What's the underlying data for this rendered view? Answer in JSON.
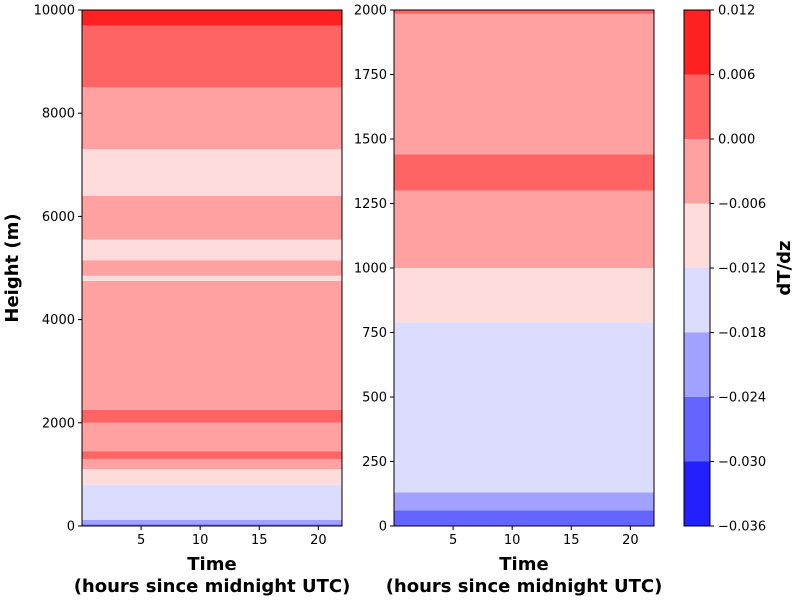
{
  "chart_data": [
    {
      "type": "heatmap",
      "panel": "left",
      "xlabel_line1": "Time",
      "xlabel_line2": "(hours since midnight UTC)",
      "ylabel": "Height (m)",
      "xlim": [
        0,
        22
      ],
      "ylim": [
        0,
        10000
      ],
      "x_ticks": [
        5,
        10,
        15,
        20
      ],
      "y_ticks": [
        0,
        2000,
        4000,
        6000,
        8000,
        10000
      ],
      "layers": [
        {
          "y0": 0,
          "y1": 30,
          "value": -0.03
        },
        {
          "y0": 30,
          "y1": 120,
          "value": -0.024
        },
        {
          "y0": 120,
          "y1": 800,
          "value": -0.018
        },
        {
          "y0": 800,
          "y1": 1100,
          "value": -0.012
        },
        {
          "y0": 1100,
          "y1": 1300,
          "value": -0.006
        },
        {
          "y0": 1300,
          "y1": 1450,
          "value": 0.0
        },
        {
          "y0": 1450,
          "y1": 2000,
          "value": -0.006
        },
        {
          "y0": 2000,
          "y1": 2250,
          "value": 0.0
        },
        {
          "y0": 2250,
          "y1": 4750,
          "value": -0.006
        },
        {
          "y0": 4750,
          "y1": 4850,
          "value": -0.012
        },
        {
          "y0": 4850,
          "y1": 5150,
          "value": -0.006
        },
        {
          "y0": 5150,
          "y1": 5550,
          "value": -0.012
        },
        {
          "y0": 5550,
          "y1": 6400,
          "value": -0.006
        },
        {
          "y0": 6400,
          "y1": 7300,
          "value": -0.012
        },
        {
          "y0": 7300,
          "y1": 8500,
          "value": -0.006
        },
        {
          "y0": 8500,
          "y1": 9700,
          "value": 0.0
        },
        {
          "y0": 9700,
          "y1": 10000,
          "value": 0.006
        }
      ]
    },
    {
      "type": "heatmap",
      "panel": "right",
      "xlabel_line1": "Time",
      "xlabel_line2": "(hours since midnight UTC)",
      "xlim": [
        0,
        22
      ],
      "ylim": [
        0,
        2000
      ],
      "x_ticks": [
        5,
        10,
        15,
        20
      ],
      "y_ticks": [
        0,
        250,
        500,
        750,
        1000,
        1250,
        1500,
        1750,
        2000
      ],
      "layers": [
        {
          "y0": 0,
          "y1": 60,
          "value": -0.03
        },
        {
          "y0": 60,
          "y1": 130,
          "value": -0.024
        },
        {
          "y0": 130,
          "y1": 790,
          "value": -0.018
        },
        {
          "y0": 790,
          "y1": 1000,
          "value": -0.012
        },
        {
          "y0": 1000,
          "y1": 1300,
          "value": -0.006
        },
        {
          "y0": 1300,
          "y1": 1440,
          "value": 0.0
        },
        {
          "y0": 1440,
          "y1": 1985,
          "value": -0.006
        },
        {
          "y0": 1985,
          "y1": 2000,
          "value": 0.0
        }
      ]
    }
  ],
  "colorbar": {
    "label": "dT/dz",
    "ticks": [
      "0.012",
      "0.006",
      "0.000",
      "−0.006",
      "−0.012",
      "−0.018",
      "−0.024",
      "−0.030",
      "−0.036"
    ],
    "levels": [
      0.012,
      0.006,
      0.0,
      -0.006,
      -0.012,
      -0.018,
      -0.024,
      -0.03,
      -0.036
    ],
    "colors": [
      "#ff2121",
      "#ff6464",
      "#ffa1a1",
      "#ffdcdc",
      "#dcdcff",
      "#a1a1ff",
      "#6464ff",
      "#2121ff"
    ]
  }
}
